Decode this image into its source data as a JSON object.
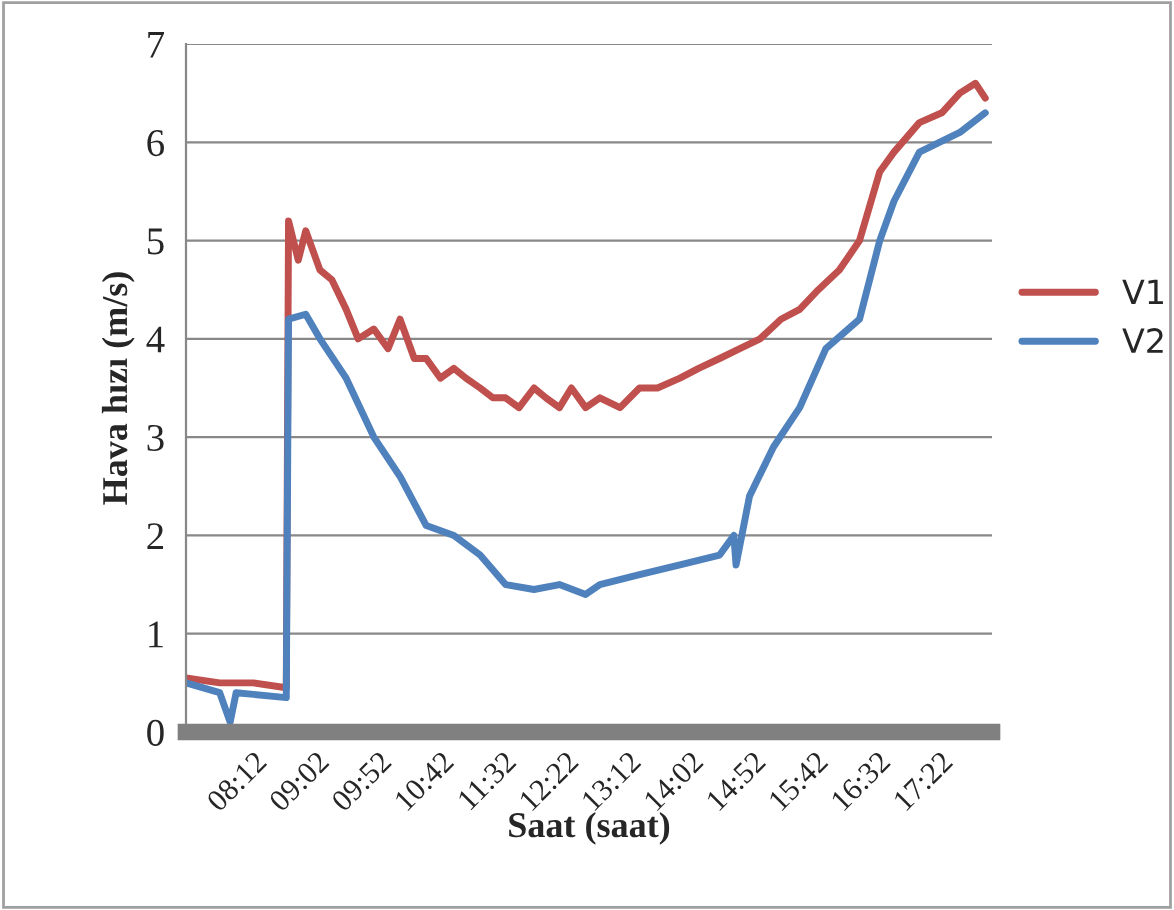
{
  "chart_data": {
    "type": "line",
    "xlabel": "Saat (saat)",
    "ylabel": "Hava hızı (m/s)",
    "xlim": [
      7.3,
      18.07
    ],
    "ylim": [
      0,
      7
    ],
    "yticks": [
      0,
      1,
      2,
      3,
      4,
      5,
      6,
      7
    ],
    "xticks": [
      {
        "value": 8.2,
        "label": "08:12"
      },
      {
        "value": 9.0333,
        "label": "09:02"
      },
      {
        "value": 9.8667,
        "label": "09:52"
      },
      {
        "value": 10.7,
        "label": "10:42"
      },
      {
        "value": 11.5333,
        "label": "11:32"
      },
      {
        "value": 12.3667,
        "label": "12:22"
      },
      {
        "value": 13.2,
        "label": "13:12"
      },
      {
        "value": 14.0333,
        "label": "14:02"
      },
      {
        "value": 14.8667,
        "label": "14:52"
      },
      {
        "value": 15.7,
        "label": "15:42"
      },
      {
        "value": 16.5333,
        "label": "16:32"
      },
      {
        "value": 17.3667,
        "label": "17:22"
      }
    ],
    "grid": "y",
    "legend": "right",
    "marker": "none",
    "line_style": "solid",
    "series": [
      {
        "name": "V1",
        "color": "#c0504d",
        "x": [
          7.3,
          7.75,
          8.2,
          8.64,
          8.67,
          8.8,
          8.9,
          9.09,
          9.25,
          9.44,
          9.6,
          9.81,
          10.0,
          10.16,
          10.35,
          10.51,
          10.7,
          10.88,
          11.04,
          11.23,
          11.4,
          11.57,
          11.75,
          11.95,
          12.11,
          12.29,
          12.45,
          12.64,
          12.83,
          13.1,
          13.36,
          13.6,
          13.9,
          14.15,
          14.43,
          14.7,
          14.97,
          15.25,
          15.5,
          15.75,
          16.03,
          16.3,
          16.57,
          16.76,
          17.1,
          17.4,
          17.64,
          17.85,
          17.98
        ],
        "values": [
          0.55,
          0.5,
          0.5,
          0.45,
          5.2,
          4.8,
          5.1,
          4.7,
          4.6,
          4.3,
          4.0,
          4.1,
          3.9,
          4.2,
          3.8,
          3.8,
          3.6,
          3.7,
          3.6,
          3.5,
          3.4,
          3.4,
          3.3,
          3.5,
          3.4,
          3.3,
          3.5,
          3.3,
          3.4,
          3.3,
          3.5,
          3.5,
          3.6,
          3.7,
          3.8,
          3.9,
          4.0,
          4.2,
          4.3,
          4.5,
          4.7,
          5.0,
          5.7,
          5.9,
          6.2,
          6.3,
          6.5,
          6.6,
          6.45
        ]
      },
      {
        "name": "V2",
        "color": "#4f81bd",
        "x": [
          7.3,
          7.75,
          7.89,
          7.97,
          8.64,
          8.67,
          8.9,
          9.09,
          9.44,
          9.81,
          10.16,
          10.51,
          10.88,
          11.23,
          11.57,
          11.95,
          12.29,
          12.64,
          12.83,
          13.36,
          13.9,
          14.43,
          14.62,
          14.65,
          14.83,
          15.15,
          15.5,
          15.85,
          16.3,
          16.57,
          16.76,
          17.1,
          17.64,
          17.98
        ],
        "values": [
          0.5,
          0.4,
          0.1,
          0.4,
          0.35,
          4.2,
          4.25,
          4.0,
          3.6,
          3.0,
          2.6,
          2.1,
          2.0,
          1.8,
          1.5,
          1.45,
          1.5,
          1.4,
          1.5,
          1.6,
          1.7,
          1.8,
          2.0,
          1.7,
          2.4,
          2.9,
          3.3,
          3.9,
          4.2,
          5.0,
          5.4,
          5.9,
          6.1,
          6.3
        ]
      }
    ]
  }
}
